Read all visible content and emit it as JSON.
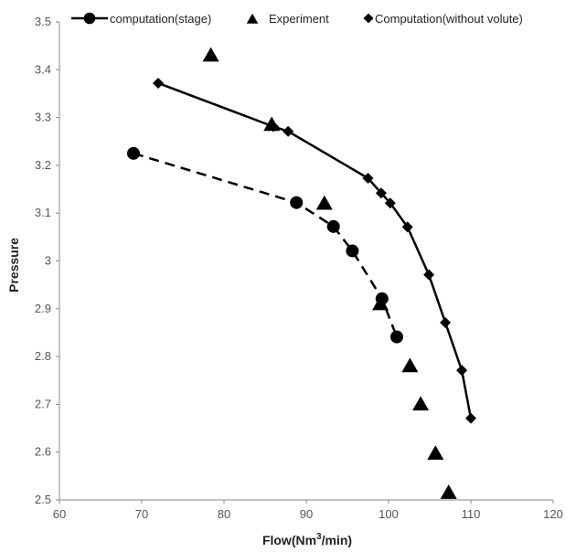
{
  "chart_data": {
    "type": "scatter",
    "xlabel": "Flow(Nm³/min)",
    "ylabel": "Pressure",
    "xlim": [
      60,
      120
    ],
    "ylim": [
      2.5,
      3.5
    ],
    "x_ticks": [
      "60",
      "70",
      "80",
      "90",
      "100",
      "110",
      "120"
    ],
    "y_ticks": [
      "2.5",
      "2.6",
      "2.7",
      "2.8",
      "2.9",
      "3",
      "3.1",
      "3.2",
      "3.3",
      "3.4",
      "3.5"
    ],
    "grid": false,
    "legend_position": "top",
    "series": [
      {
        "name": "computation(stage)",
        "marker": "circle",
        "line": "dashed",
        "color": "#000000",
        "points": [
          [
            69.0,
            3.225
          ],
          [
            88.8,
            3.122
          ],
          [
            93.3,
            3.072
          ],
          [
            95.6,
            3.021
          ],
          [
            99.2,
            2.921
          ],
          [
            101.0,
            2.841
          ]
        ]
      },
      {
        "name": "Experiment",
        "marker": "triangle",
        "line": "none",
        "color": "#000000",
        "points": [
          [
            78.4,
            3.43
          ],
          [
            85.8,
            3.285
          ],
          [
            92.2,
            3.12
          ],
          [
            99.0,
            2.91
          ],
          [
            102.6,
            2.78
          ],
          [
            103.9,
            2.7
          ],
          [
            105.7,
            2.597
          ],
          [
            107.3,
            2.515
          ]
        ]
      },
      {
        "name": "Computation(without volute)",
        "marker": "diamond",
        "line": "solid",
        "color": "#000000",
        "points": [
          [
            72.0,
            3.372
          ],
          [
            86.0,
            3.281
          ],
          [
            87.8,
            3.271
          ],
          [
            97.5,
            3.173
          ],
          [
            99.1,
            3.142
          ],
          [
            100.2,
            3.121
          ],
          [
            102.3,
            3.071
          ],
          [
            104.9,
            2.971
          ],
          [
            106.9,
            2.871
          ],
          [
            108.9,
            2.771
          ],
          [
            110.0,
            2.671
          ]
        ]
      }
    ]
  }
}
